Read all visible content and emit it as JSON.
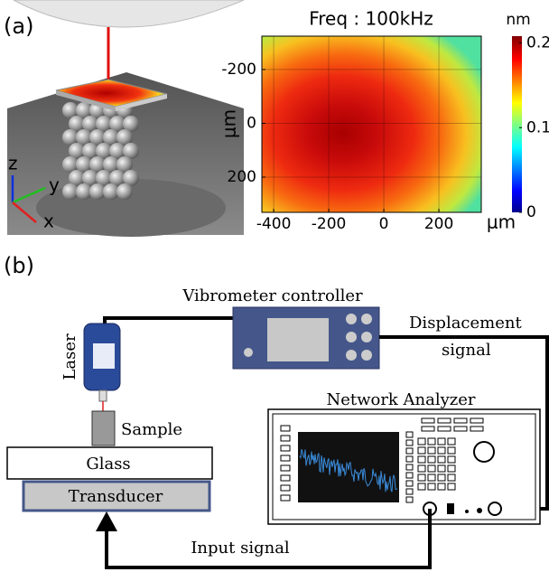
{
  "panel_a": {
    "label": "(a)",
    "axes_3d": [
      "z",
      "y",
      "x"
    ],
    "heatmap": {
      "title": "Freq : 100kHz",
      "x_unit": "μm",
      "y_unit": "μm",
      "xlim": [
        -443,
        354
      ],
      "ylim": [
        -324,
        331
      ],
      "xticks": [
        -400,
        -200,
        0,
        200
      ],
      "yticks": [
        -200,
        0,
        200
      ],
      "colorbar": {
        "unit": "nm",
        "lim": [
          0,
          0.208
        ],
        "ticks": [
          0,
          0.1,
          0.2
        ]
      }
    }
  },
  "panel_b": {
    "label": "(b)",
    "controller": "Vibrometer controller",
    "displacement": [
      "Displacement",
      "signal"
    ],
    "laser": "Laser",
    "sample": "Sample",
    "glass": "Glass",
    "transducer": "Transducer",
    "analyzer": "Network Analyzer",
    "input": "Input signal"
  }
}
